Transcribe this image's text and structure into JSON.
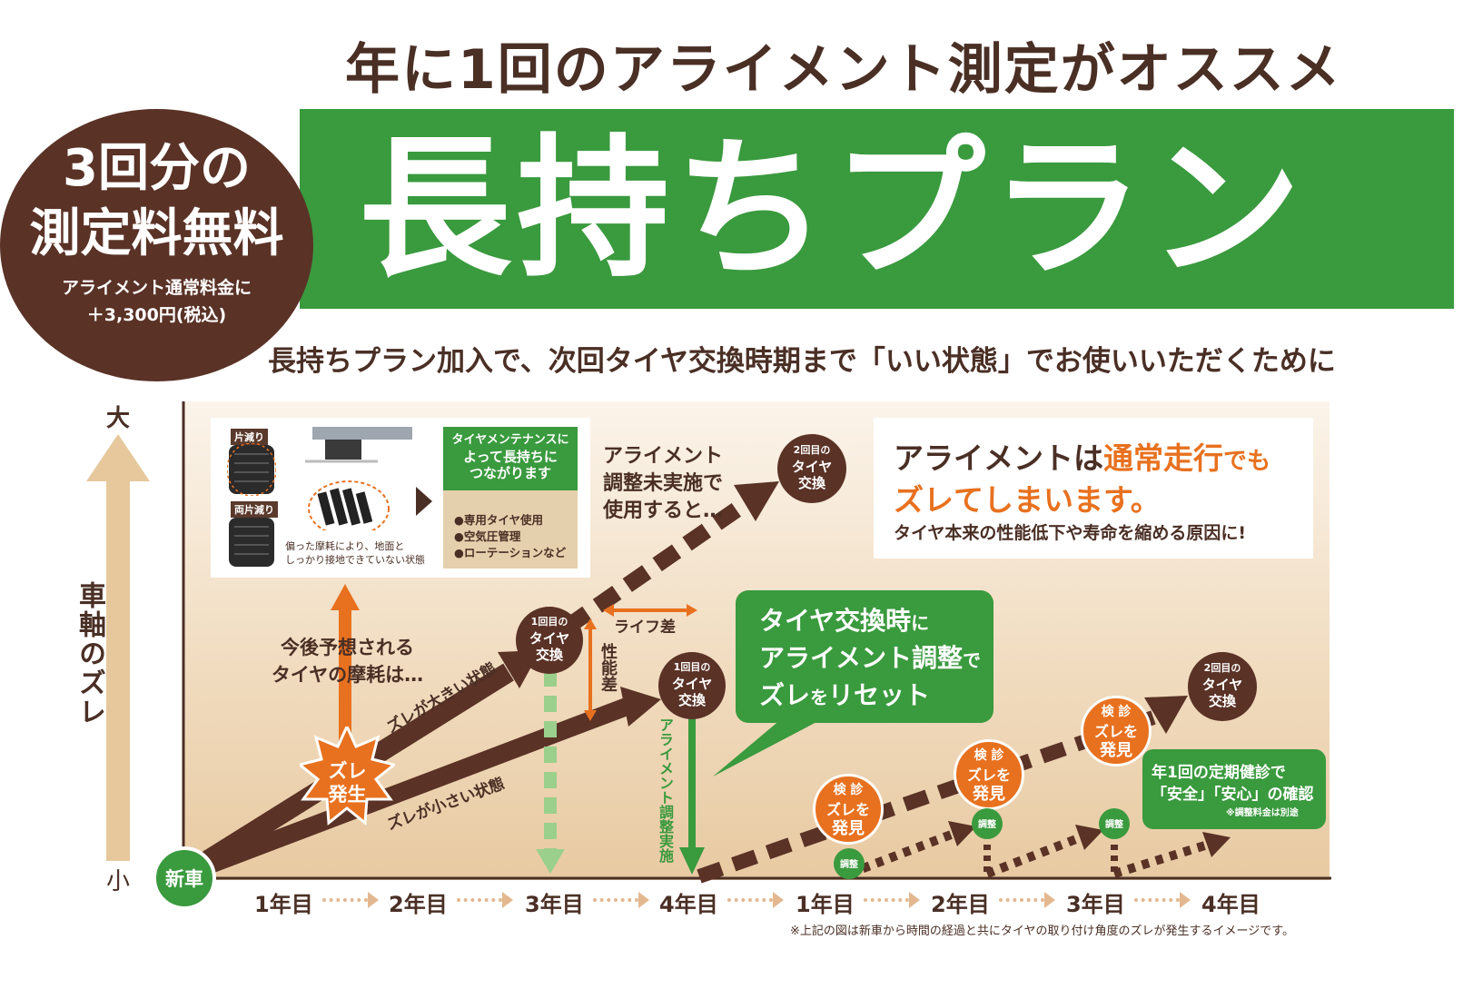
{
  "headline": "年に1回のアライメント測定がオススメ",
  "plan_title": "長持ちプラン",
  "badge": {
    "line1": "3回分の",
    "line2": "測定料無料",
    "line3": "アライメント通常料金に",
    "line4": "＋3,300円(税込)"
  },
  "subline": "長持ちプラン加入で、次回タイヤ交換時期まで「いい状態」でお使いいただくために",
  "y_axis": {
    "label": "車軸のズレ",
    "large": "大",
    "small": "小"
  },
  "info": {
    "tyre_label1": "片減り",
    "tyre_label2": "両片減り",
    "caption1": "偏った摩耗により、地面と",
    "caption2": "しっかり接地できていない状態",
    "maint_head1": "タイヤメンテナンスに",
    "maint_head2": "よって長持ちに",
    "maint_head3": "つながります",
    "maint_items": [
      "●専用タイヤ使用",
      "●空気圧管理",
      "●ローテーションなど"
    ]
  },
  "warning": {
    "line1a": "アライメントは",
    "line1b": "通常走行",
    "line1c": "でも",
    "line2": "ズレてしまいます。",
    "line3": "タイヤ本来の性能低下や寿命を縮める原因に!"
  },
  "labels": {
    "unadjusted1": "アライメント",
    "unadjusted2": "調整未実施で",
    "unadjusted3": "使用すると…",
    "future1": "今後予想される",
    "future2": "タイヤの摩耗は…",
    "big_shift": "ズレが大きい状態",
    "small_shift": "ズレが小さい状態",
    "life_diff": "ライフ差",
    "perf_diff": "性能差",
    "alignment_done": "アライメント調整実施",
    "shift_occur1": "ズレ",
    "shift_occur2": "発生",
    "new_car": "新車",
    "adjust": "調整"
  },
  "circles": {
    "first1": "1回目の",
    "first2": "タイヤ",
    "first3": "交換",
    "second1": "2回目の"
  },
  "inspection": {
    "l1": "検 診",
    "l2": "ズレを",
    "l3": "発見"
  },
  "bubble": {
    "line1a": "タイヤ交換時",
    "line1b": "に",
    "line2a": "アライメント調整",
    "line2b": "で",
    "line3a": "ズレ",
    "line3b": "を",
    "line3c": "リセット"
  },
  "bubble2": {
    "line1": "年1回の定期健診で",
    "line2": "「安全」「安心」の確認",
    "line3": "※調整料金は別途"
  },
  "x_axis": [
    "1年目",
    "2年目",
    "3年目",
    "4年目",
    "1年目",
    "2年目",
    "3年目",
    "4年目"
  ],
  "footnote": "※上記の図は新車から時間の経過と共にタイヤの取り付け角度のズレが発生するイメージです。",
  "colors": {
    "brown": "#5a3226",
    "green": "#3a9a3e",
    "orange": "#e8711f"
  }
}
